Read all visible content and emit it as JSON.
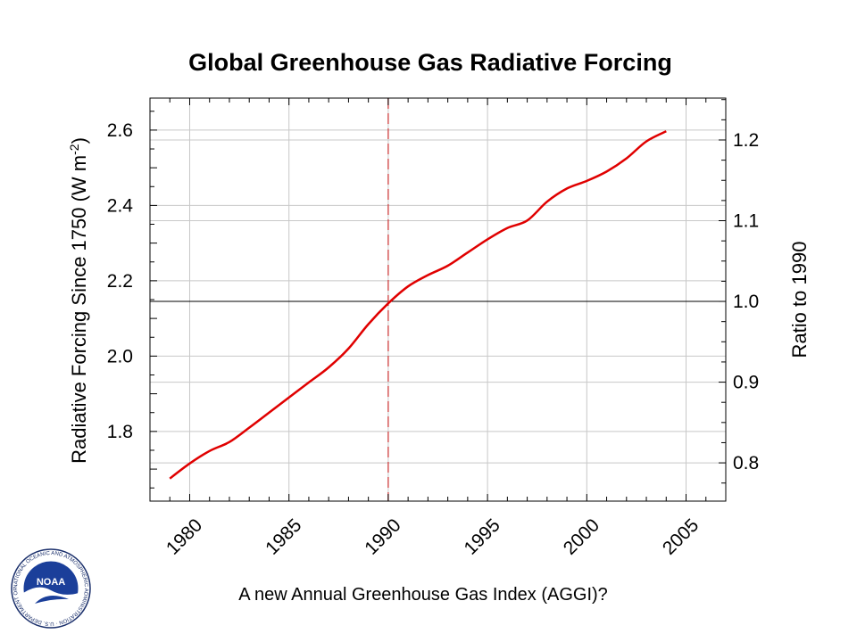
{
  "chart_data": {
    "type": "line",
    "title": "Global Greenhouse Gas Radiative Forcing",
    "ylabel": "Radiative Forcing Since 1750 (W m",
    "ylabel_superscript": "-2",
    "ylabel_suffix": ")",
    "y2label": "Ratio to 1990",
    "caption": "A new Annual Greenhouse Gas Index (AGGI)?",
    "xlim": [
      1978,
      2007
    ],
    "ylim": [
      1.615,
      2.685
    ],
    "y2lim": [
      0.7526,
      1.2519
    ],
    "x_ticks": [
      1980,
      1985,
      1990,
      1995,
      2000,
      2005
    ],
    "x_tick_labels": [
      "1980",
      "1985",
      "1990",
      "1995",
      "2000",
      "2005"
    ],
    "y_ticks": [
      1.8,
      2.0,
      2.2,
      2.4,
      2.6
    ],
    "y_tick_labels": [
      "1.8",
      "2.0",
      "2.2",
      "2.4",
      "2.6"
    ],
    "y2_ticks": [
      0.8,
      0.9,
      1.0,
      1.1,
      1.2
    ],
    "y2_tick_labels": [
      "0.8",
      "0.9",
      "1.0",
      "1.1",
      "1.2"
    ],
    "grid": true,
    "reference_line": {
      "ratio": 1.0
    },
    "vertical_marker": {
      "x": 1990,
      "style": "dashed"
    },
    "colors": {
      "series": "#e00000",
      "marker": "#d04040",
      "grid": "#c8c8c8",
      "reference": "#000000"
    },
    "series": [
      {
        "x": [
          1979,
          1980,
          1981,
          1982,
          1983,
          1984,
          1985,
          1986,
          1987,
          1988,
          1989,
          1990,
          1991,
          1992,
          1993,
          1994,
          1995,
          1996,
          1997,
          1998,
          1999,
          2000,
          2001,
          2002,
          2003,
          2004
        ],
        "y": [
          1.675,
          1.715,
          1.748,
          1.772,
          1.81,
          1.85,
          1.89,
          1.93,
          1.97,
          2.02,
          2.085,
          2.14,
          2.185,
          2.215,
          2.24,
          2.275,
          2.31,
          2.34,
          2.36,
          2.41,
          2.445,
          2.465,
          2.49,
          2.525,
          2.57,
          2.597
        ]
      }
    ]
  },
  "logo": {
    "text": "NOAA",
    "ring_text": "NATIONAL OCEANIC AND ATMOSPHERIC ADMINISTRATION · U.S. DEPARTMENT OF COMMERCE"
  }
}
